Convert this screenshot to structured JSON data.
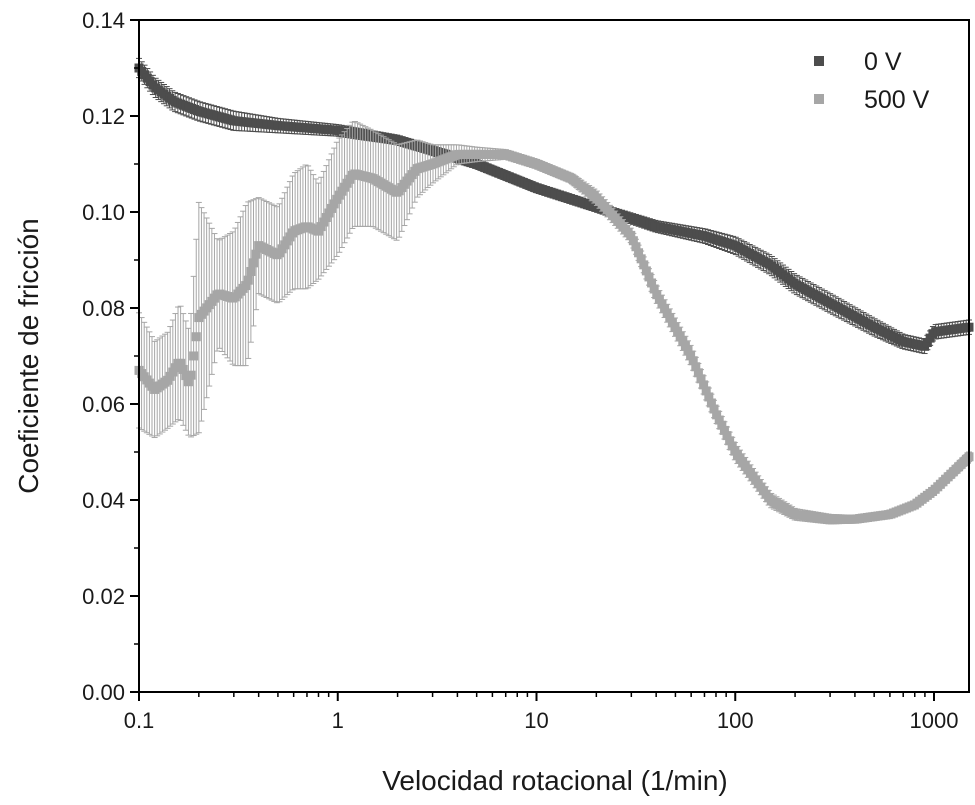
{
  "chart_data": {
    "type": "scatter",
    "xlabel": "Velocidad rotacional (1/min)",
    "ylabel": "Coeficiente de fricción",
    "xscale": "log",
    "xlim": [
      0.1,
      1500
    ],
    "ylim": [
      0.0,
      0.14
    ],
    "x_ticks": [
      "0.1",
      "1",
      "10",
      "100",
      "1000"
    ],
    "y_ticks": [
      "0.00",
      "0.02",
      "0.04",
      "0.06",
      "0.08",
      "0.10",
      "0.12",
      "0.14"
    ],
    "grid": false,
    "legend_position": "top-right",
    "marker": "square",
    "error_bars": true,
    "series": [
      {
        "name": "0 V",
        "color": "#4d4d4d",
        "x": [
          0.1,
          0.12,
          0.15,
          0.2,
          0.3,
          0.5,
          1,
          2,
          5,
          10,
          20,
          40,
          70,
          100,
          150,
          200,
          300,
          500,
          700,
          900,
          1000,
          1500
        ],
        "y": [
          0.13,
          0.126,
          0.123,
          0.121,
          0.119,
          0.118,
          0.117,
          0.115,
          0.11,
          0.105,
          0.101,
          0.097,
          0.095,
          0.093,
          0.089,
          0.085,
          0.081,
          0.076,
          0.073,
          0.072,
          0.075,
          0.076
        ],
        "err": [
          0.002,
          0.002,
          0.002,
          0.002,
          0.002,
          0.0015,
          0.0012,
          0.001,
          0.001,
          0.001,
          0.001,
          0.0012,
          0.0015,
          0.0018,
          0.002,
          0.002,
          0.002,
          0.0018,
          0.0015,
          0.0015,
          0.0015,
          0.0015
        ]
      },
      {
        "name": "500 V",
        "color": "#a6a6a6",
        "x": [
          0.1,
          0.12,
          0.14,
          0.16,
          0.18,
          0.2,
          0.25,
          0.3,
          0.35,
          0.4,
          0.5,
          0.6,
          0.7,
          0.8,
          1,
          1.2,
          1.5,
          2,
          2.5,
          3,
          4,
          5,
          7,
          10,
          15,
          20,
          30,
          40,
          60,
          80,
          100,
          150,
          200,
          300,
          400,
          600,
          800,
          1000,
          1500
        ],
        "y": [
          0.067,
          0.063,
          0.065,
          0.069,
          0.064,
          0.078,
          0.083,
          0.082,
          0.085,
          0.093,
          0.091,
          0.096,
          0.097,
          0.096,
          0.103,
          0.108,
          0.107,
          0.104,
          0.109,
          0.11,
          0.112,
          0.112,
          0.112,
          0.11,
          0.107,
          0.103,
          0.095,
          0.083,
          0.07,
          0.058,
          0.05,
          0.04,
          0.037,
          0.036,
          0.036,
          0.037,
          0.039,
          0.042,
          0.049
        ],
        "err": [
          0.012,
          0.01,
          0.01,
          0.012,
          0.011,
          0.024,
          0.011,
          0.014,
          0.017,
          0.01,
          0.01,
          0.012,
          0.013,
          0.01,
          0.012,
          0.011,
          0.01,
          0.01,
          0.006,
          0.004,
          0.002,
          0.0015,
          0.001,
          0.001,
          0.001,
          0.0015,
          0.0015,
          0.0018,
          0.002,
          0.0018,
          0.0018,
          0.0015,
          0.0012,
          0.001,
          0.0008,
          0.0008,
          0.0008,
          0.0008,
          0.001
        ]
      }
    ]
  }
}
